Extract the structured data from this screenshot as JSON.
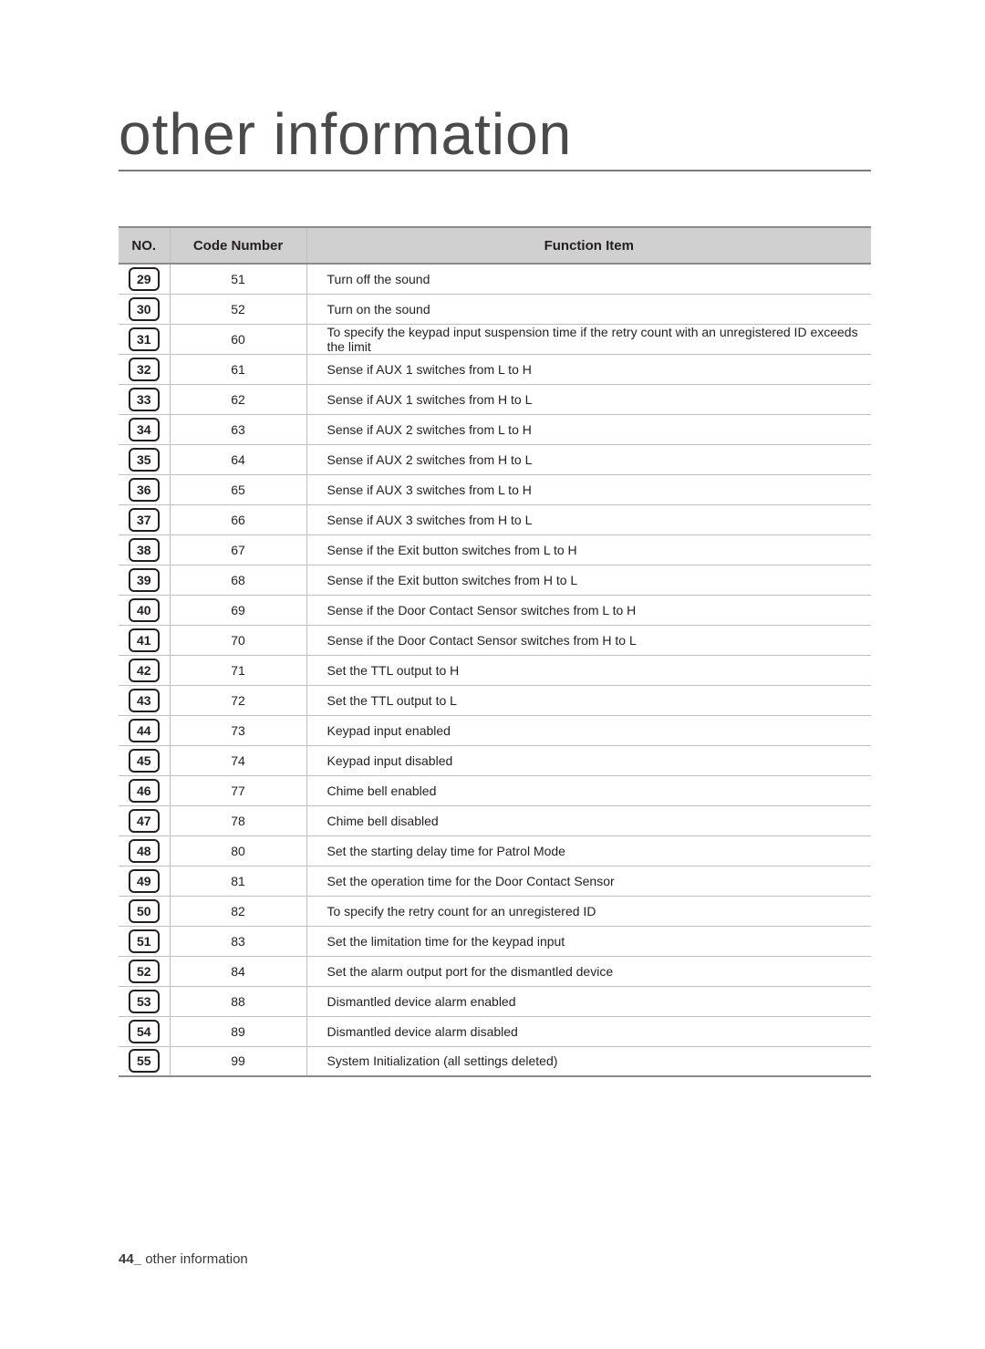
{
  "page": {
    "title": "other information",
    "footer_page": "44_",
    "footer_text": " other information"
  },
  "table": {
    "headers": {
      "no": "NO.",
      "code": "Code Number",
      "func": "Function Item"
    },
    "rows": [
      {
        "no": "29",
        "code": "51",
        "func": "Turn off the sound"
      },
      {
        "no": "30",
        "code": "52",
        "func": "Turn on the sound"
      },
      {
        "no": "31",
        "code": "60",
        "func": "To specify the keypad input suspension time if the retry count with an unregistered ID exceeds the limit"
      },
      {
        "no": "32",
        "code": "61",
        "func": "Sense if AUX 1 switches from L to H"
      },
      {
        "no": "33",
        "code": "62",
        "func": "Sense if AUX 1 switches from H to L"
      },
      {
        "no": "34",
        "code": "63",
        "func": "Sense if AUX 2 switches from L to H"
      },
      {
        "no": "35",
        "code": "64",
        "func": "Sense if AUX 2 switches from H to L"
      },
      {
        "no": "36",
        "code": "65",
        "func": "Sense if AUX 3 switches from L to H"
      },
      {
        "no": "37",
        "code": "66",
        "func": "Sense if AUX 3 switches from H to L"
      },
      {
        "no": "38",
        "code": "67",
        "func": "Sense if the Exit button switches from L to H"
      },
      {
        "no": "39",
        "code": "68",
        "func": "Sense if the Exit button switches from H to L"
      },
      {
        "no": "40",
        "code": "69",
        "func": "Sense if the Door Contact Sensor switches from L to H"
      },
      {
        "no": "41",
        "code": "70",
        "func": "Sense if the Door Contact Sensor switches from H to L"
      },
      {
        "no": "42",
        "code": "71",
        "func": "Set the TTL output to H"
      },
      {
        "no": "43",
        "code": "72",
        "func": "Set the TTL output to L"
      },
      {
        "no": "44",
        "code": "73",
        "func": "Keypad input enabled"
      },
      {
        "no": "45",
        "code": "74",
        "func": "Keypad input disabled"
      },
      {
        "no": "46",
        "code": "77",
        "func": "Chime bell enabled"
      },
      {
        "no": "47",
        "code": "78",
        "func": "Chime bell disabled"
      },
      {
        "no": "48",
        "code": "80",
        "func": "Set the starting delay time for Patrol Mode"
      },
      {
        "no": "49",
        "code": "81",
        "func": "Set the operation time for the Door Contact Sensor"
      },
      {
        "no": "50",
        "code": "82",
        "func": "To specify the retry count for an unregistered ID"
      },
      {
        "no": "51",
        "code": "83",
        "func": "Set the limitation time for the keypad input"
      },
      {
        "no": "52",
        "code": "84",
        "func": "Set the alarm output port for the dismantled device"
      },
      {
        "no": "53",
        "code": "88",
        "func": "Dismantled device alarm enabled"
      },
      {
        "no": "54",
        "code": "89",
        "func": "Dismantled device alarm disabled"
      },
      {
        "no": "55",
        "code": "99",
        "func": "System Initialization (all settings deleted)"
      }
    ]
  }
}
